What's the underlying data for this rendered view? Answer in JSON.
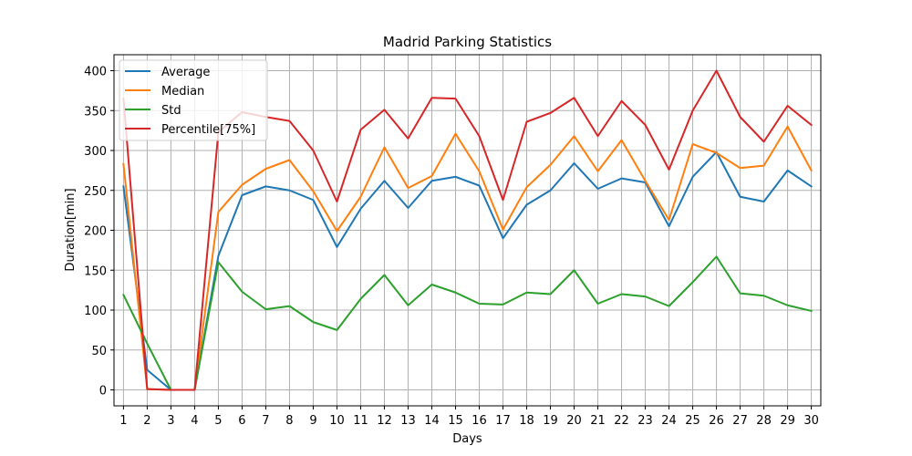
{
  "chart_data": {
    "type": "line",
    "title": "Madrid Parking Statistics",
    "xlabel": "Days",
    "ylabel": "Duration[min]",
    "x": [
      1,
      2,
      3,
      4,
      5,
      6,
      7,
      8,
      9,
      10,
      11,
      12,
      13,
      14,
      15,
      16,
      17,
      18,
      19,
      20,
      21,
      22,
      23,
      24,
      25,
      26,
      27,
      28,
      29,
      30
    ],
    "xlim": [
      0.6,
      30.4
    ],
    "ylim": [
      -20,
      420
    ],
    "yticks": [
      0,
      50,
      100,
      150,
      200,
      250,
      300,
      350,
      400
    ],
    "grid": true,
    "legend_position": "top-left",
    "series": [
      {
        "name": "Average",
        "color": "#1f77b4",
        "values": [
          255,
          25,
          0,
          0,
          168,
          244,
          255,
          250,
          238,
          179,
          227,
          262,
          228,
          262,
          267,
          256,
          190,
          232,
          250,
          284,
          252,
          265,
          260,
          205,
          267,
          298,
          242,
          236,
          275,
          255
        ]
      },
      {
        "name": "Median",
        "color": "#ff7f0e",
        "values": [
          283,
          1,
          0,
          0,
          223,
          257,
          277,
          288,
          249,
          199,
          242,
          304,
          253,
          268,
          321,
          274,
          201,
          254,
          282,
          318,
          274,
          313,
          262,
          213,
          308,
          297,
          278,
          281,
          330,
          275
        ]
      },
      {
        "name": "Std",
        "color": "#2ca02c",
        "values": [
          119,
          58,
          0,
          0,
          160,
          123,
          101,
          105,
          85,
          75,
          114,
          144,
          106,
          132,
          122,
          108,
          107,
          122,
          120,
          150,
          108,
          120,
          117,
          105,
          135,
          167,
          121,
          118,
          106,
          99
        ]
      },
      {
        "name": "Percentile[75%]",
        "color": "#d62728",
        "values": [
          365,
          1,
          0,
          0,
          323,
          348,
          342,
          337,
          300,
          236,
          326,
          351,
          315,
          366,
          365,
          318,
          238,
          336,
          347,
          366,
          318,
          362,
          332,
          276,
          350,
          400,
          342,
          311,
          356,
          332
        ]
      }
    ]
  }
}
